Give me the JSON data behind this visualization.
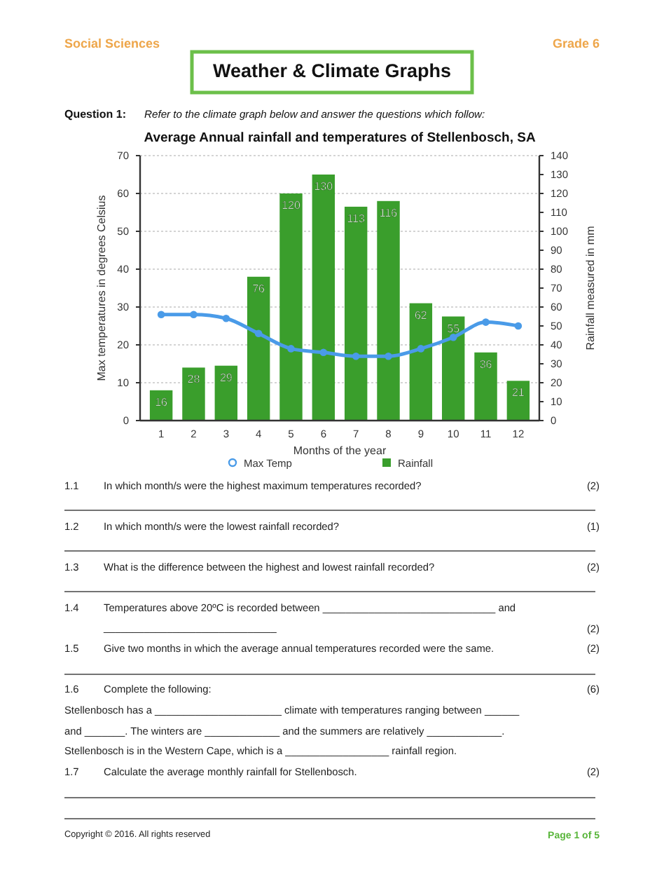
{
  "chart_data": {
    "type": "bar",
    "title": "Average Annual rainfall and temperatures of Stellenbosch, SA",
    "xlabel": "Months of the year",
    "ylabel": "Max temperatures  in degrees Celsius",
    "y2label": "Rainfall measured in mm",
    "categories": [
      "1",
      "2",
      "3",
      "4",
      "5",
      "6",
      "7",
      "8",
      "9",
      "10",
      "11",
      "12"
    ],
    "series": [
      {
        "name": "Max Temp",
        "type": "line",
        "color": "#4a9be8",
        "axis": "y",
        "marker": "circle",
        "values": [
          28,
          28,
          27,
          23,
          19,
          18,
          17,
          17,
          19,
          22,
          26,
          25
        ]
      },
      {
        "name": "Rainfall",
        "color": "#3a9e2c",
        "axis": "y2",
        "values": [
          16,
          28,
          29,
          76,
          120,
          130,
          113,
          116,
          62,
          55,
          36,
          21
        ],
        "value_labels": [
          "16",
          "28",
          "29",
          "76",
          "120",
          "130",
          "113",
          "116",
          "62",
          "55",
          "36",
          "21"
        ]
      }
    ],
    "ylim": [
      0,
      70
    ],
    "yticks": [
      0,
      10,
      20,
      30,
      40,
      50,
      60,
      70
    ],
    "y2lim": [
      0,
      140
    ],
    "y2ticks": [
      0,
      10,
      20,
      30,
      40,
      50,
      60,
      70,
      80,
      90,
      100,
      110,
      120,
      130,
      140
    ],
    "grid": "y",
    "legend": "bottom",
    "annotations": [
      "Social Sciences",
      "Grade 6",
      "Weather & Climate Graphs",
      "Question 1:",
      "Refer to the climate graph below and answer the questions which follow:",
      "1.1",
      "In which month/s were the highest maximum temperatures recorded?",
      "(2)",
      "1.2",
      "In which month/s were the lowest rainfall recorded?",
      "(1)",
      "1.3",
      "What is the difference between the highest and lowest rainfall recorded?",
      "(2)",
      "1.4",
      "Temperatures above 20ºC is recorded between ______________________________ and",
      "______________________________",
      "(2)",
      "1.5",
      "Give two months in which the average annual temperatures recorded were the same.",
      "(2)",
      "1.6",
      "Complete the following:",
      "(6)",
      "Stellenbosch has a ______________________ climate with temperatures ranging between ______",
      "and _______. The winters are _____________ and the summers are relatively _____________.",
      "Stellenbosch is in the Western Cape, which is a __________________ rainfall region.",
      "1.7",
      "Calculate the average monthly rainfall for Stellenbosch.",
      "(2)",
      "Copyright © 2016. All rights reserved",
      "Page 1 of 5"
    ]
  }
}
